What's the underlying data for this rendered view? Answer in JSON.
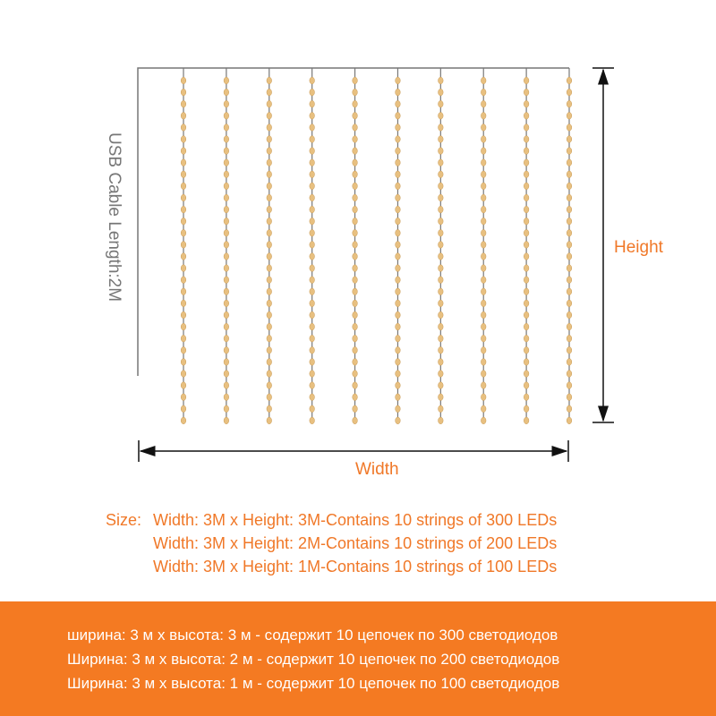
{
  "diagram": {
    "cable_label": "USB Cable Length:2M",
    "height_label": "Height",
    "width_label": "Width",
    "string_count": 10,
    "led_color": "#e8c080",
    "wire_color": "#777777",
    "accent_color": "#f07828"
  },
  "specs": {
    "prefix": "Size:",
    "lines": [
      "Width: 3M x Height: 3M-Contains 10 strings of 300 LEDs",
      "Width: 3M x Height: 2M-Contains 10 strings of 200 LEDs",
      "Width: 3M x Height: 1M-Contains 10 strings of 100 LEDs"
    ]
  },
  "banner": {
    "color": "#f47a22",
    "lines": [
      "ширина: 3 м x высота: 3 м - содержит 10 цепочек по 300 светодиодов",
      "Ширина: 3 м x высота: 2 м - содержит 10 цепочек по 200 светодиодов",
      "Ширина: 3 м x высота: 1 м - содержит 10 цепочек по 100 светодиодов"
    ]
  }
}
